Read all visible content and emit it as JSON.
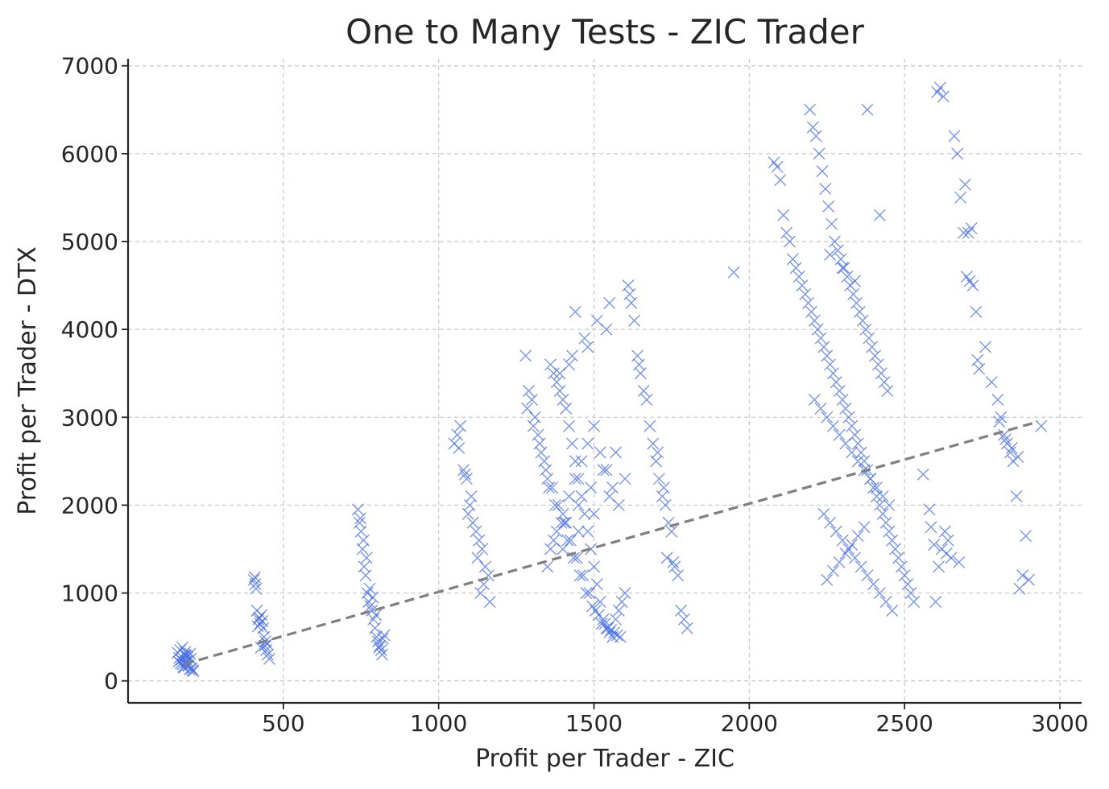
{
  "chart_data": {
    "type": "scatter",
    "title": "One to Many Tests - ZIC Trader",
    "xlabel": "Profit per Trader - ZIC",
    "ylabel": "Profit per Trader - DTX",
    "xlim": [
      0,
      3070
    ],
    "ylim": [
      -250,
      7080
    ],
    "xticks": [
      500,
      1000,
      1500,
      2000,
      2500,
      3000
    ],
    "yticks": [
      0,
      1000,
      2000,
      3000,
      4000,
      5000,
      6000,
      7000
    ],
    "grid": true,
    "legend": "none",
    "colors": {
      "points": "#4169e1",
      "trend": "#808080"
    },
    "trend_line": {
      "x": [
        180,
        2930
      ],
      "y": [
        190,
        2950
      ]
    },
    "series": [
      {
        "marker": "x",
        "x": [
          160,
          165,
          170,
          175,
          180,
          185,
          190,
          195,
          200,
          205,
          210,
          168,
          172,
          178,
          182,
          188,
          192,
          198,
          202,
          176,
          184,
          194,
          163,
          208,
          186,
          405,
          410,
          415,
          420,
          425,
          430,
          435,
          440,
          445,
          450,
          455,
          412,
          422,
          432,
          442,
          418,
          438,
          428,
          448,
          408,
          740,
          745,
          750,
          755,
          760,
          765,
          770,
          775,
          780,
          785,
          790,
          795,
          800,
          805,
          810,
          815,
          820,
          825,
          748,
          768,
          788,
          808,
          758,
          778,
          798,
          818,
          1050,
          1060,
          1070,
          1080,
          1090,
          1100,
          1110,
          1120,
          1130,
          1140,
          1150,
          1160,
          1065,
          1085,
          1105,
          1125,
          1145,
          1165,
          1095,
          1135,
          1280,
          1290,
          1300,
          1310,
          1320,
          1330,
          1340,
          1350,
          1360,
          1370,
          1380,
          1390,
          1400,
          1410,
          1420,
          1430,
          1440,
          1450,
          1460,
          1470,
          1480,
          1490,
          1500,
          1510,
          1520,
          1530,
          1540,
          1550,
          1560,
          1570,
          1580,
          1590,
          1600,
          1285,
          1305,
          1325,
          1345,
          1365,
          1385,
          1405,
          1425,
          1445,
          1465,
          1485,
          1505,
          1525,
          1545,
          1565,
          1585,
          1355,
          1375,
          1395,
          1415,
          1435,
          1455,
          1475,
          1495,
          1515,
          1535,
          1555,
          1575,
          1360,
          1380,
          1400,
          1420,
          1440,
          1460,
          1480,
          1500,
          1520,
          1540,
          1560,
          1580,
          1370,
          1410,
          1450,
          1490,
          1530,
          1570,
          1390,
          1430,
          1470,
          1510,
          1550,
          1350,
          1400,
          1450,
          1500,
          1550,
          1600,
          1420,
          1480,
          1540,
          1440,
          1610,
          1620,
          1630,
          1640,
          1650,
          1660,
          1670,
          1680,
          1690,
          1700,
          1710,
          1720,
          1730,
          1740,
          1750,
          1760,
          1770,
          1780,
          1790,
          1800,
          1615,
          1645,
          1705,
          1725,
          1735,
          1755,
          1950,
          2080,
          2090,
          2100,
          2110,
          2120,
          2130,
          2140,
          2150,
          2160,
          2170,
          2180,
          2190,
          2200,
          2210,
          2220,
          2230,
          2240,
          2250,
          2260,
          2270,
          2280,
          2290,
          2300,
          2310,
          2320,
          2330,
          2340,
          2350,
          2360,
          2370,
          2380,
          2390,
          2400,
          2410,
          2420,
          2430,
          2440,
          2450,
          2460,
          2470,
          2480,
          2490,
          2500,
          2510,
          2520,
          2530,
          2195,
          2205,
          2215,
          2225,
          2235,
          2245,
          2255,
          2265,
          2275,
          2285,
          2295,
          2305,
          2315,
          2325,
          2335,
          2345,
          2355,
          2365,
          2375,
          2385,
          2395,
          2405,
          2415,
          2425,
          2435,
          2445,
          2210,
          2230,
          2250,
          2270,
          2290,
          2310,
          2330,
          2350,
          2370,
          2390,
          2410,
          2430,
          2450,
          2240,
          2260,
          2280,
          2300,
          2320,
          2340,
          2360,
          2380,
          2400,
          2420,
          2440,
          2460,
          2250,
          2270,
          2290,
          2310,
          2330,
          2350,
          2370,
          2260,
          2300,
          2340,
          2380,
          2420,
          2560,
          2580,
          2600,
          2610,
          2620,
          2630,
          2640,
          2650,
          2660,
          2670,
          2680,
          2690,
          2700,
          2710,
          2720,
          2730,
          2740,
          2760,
          2780,
          2800,
          2810,
          2820,
          2830,
          2840,
          2850,
          2860,
          2870,
          2880,
          2890,
          2900,
          2940,
          2605,
          2615,
          2625,
          2695,
          2705,
          2715,
          2805,
          2825,
          2845,
          2865,
          2585,
          2595,
          2635,
          2675,
          2735
        ],
        "y": [
          320,
          260,
          200,
          380,
          150,
          290,
          230,
          180,
          310,
          140,
          110,
          350,
          240,
          160,
          300,
          210,
          270,
          130,
          250,
          190,
          330,
          170,
          220,
          120,
          280,
          1150,
          1100,
          800,
          700,
          650,
          750,
          600,
          400,
          350,
          300,
          250,
          1050,
          720,
          680,
          450,
          620,
          500,
          380,
          420,
          1180,
          1950,
          1800,
          1700,
          1500,
          1300,
          1200,
          1000,
          900,
          850,
          800,
          700,
          600,
          500,
          450,
          400,
          350,
          480,
          520,
          1850,
          1400,
          950,
          380,
          1600,
          1050,
          750,
          300,
          2700,
          2800,
          2900,
          2400,
          2300,
          2000,
          1800,
          1700,
          1600,
          1500,
          1300,
          1200,
          2650,
          2350,
          2100,
          1400,
          1100,
          900,
          1900,
          1000,
          3700,
          3300,
          3200,
          3000,
          2800,
          2600,
          2500,
          2300,
          3600,
          3500,
          3400,
          3300,
          3200,
          3100,
          2900,
          2700,
          2500,
          2300,
          2100,
          1900,
          1700,
          1500,
          1300,
          1100,
          900,
          700,
          600,
          550,
          500,
          700,
          800,
          900,
          1000,
          3100,
          2900,
          2700,
          2400,
          2200,
          2000,
          1800,
          1600,
          1400,
          1200,
          1000,
          800,
          650,
          600,
          550,
          500,
          2200,
          2000,
          1800,
          1600,
          1400,
          1200,
          1000,
          850,
          750,
          650,
          580,
          520,
          1500,
          1700,
          1900,
          2100,
          2300,
          2500,
          2700,
          2900,
          2600,
          2400,
          2200,
          2000,
          1600,
          1800,
          2000,
          2200,
          2400,
          2600,
          3500,
          3700,
          3900,
          4100,
          4300,
          1300,
          1500,
          1700,
          1900,
          2100,
          2300,
          3600,
          3800,
          4000,
          4200,
          4500,
          4300,
          4100,
          3700,
          3500,
          3300,
          3200,
          2900,
          2700,
          2500,
          2300,
          2100,
          2000,
          1800,
          1700,
          1300,
          1200,
          800,
          700,
          600,
          4400,
          3600,
          2600,
          2200,
          1400,
          1350,
          4650,
          5900,
          5850,
          5700,
          5300,
          5100,
          5000,
          4800,
          4700,
          4600,
          4500,
          4400,
          4300,
          4200,
          4100,
          4000,
          3900,
          3800,
          3700,
          3600,
          3500,
          3400,
          3300,
          3200,
          3100,
          3000,
          2900,
          2800,
          2700,
          2600,
          2500,
          2400,
          2300,
          2200,
          2100,
          2000,
          1900,
          1800,
          1700,
          1600,
          1500,
          1400,
          1300,
          1200,
          1100,
          1000,
          900,
          6500,
          6300,
          6200,
          6000,
          5800,
          5600,
          5400,
          5200,
          5000,
          4900,
          4800,
          4700,
          4600,
          4500,
          4400,
          4300,
          4200,
          4100,
          4000,
          3900,
          3800,
          3700,
          3600,
          3500,
          3400,
          3300,
          3200,
          3100,
          3000,
          2900,
          2800,
          2700,
          2600,
          2500,
          2400,
          2300,
          2200,
          2100,
          2000,
          1900,
          1800,
          1700,
          1600,
          1500,
          1400,
          1300,
          1200,
          1100,
          1000,
          900,
          800,
          1150,
          1250,
          1350,
          1450,
          1550,
          1650,
          1750,
          4850,
          4700,
          4550,
          6500,
          5300,
          2350,
          1950,
          900,
          1300,
          1500,
          1700,
          1600,
          1400,
          6200,
          6000,
          5500,
          5100,
          4600,
          4550,
          4500,
          4200,
          3550,
          3800,
          3400,
          3200,
          3000,
          2800,
          2700,
          2600,
          2500,
          2100,
          1050,
          1200,
          1650,
          1150,
          2900,
          6700,
          6750,
          6650,
          5650,
          5100,
          5150,
          2950,
          2750,
          2650,
          2550,
          1750,
          1550,
          1450,
          1350,
          3650
        ]
      }
    ]
  }
}
